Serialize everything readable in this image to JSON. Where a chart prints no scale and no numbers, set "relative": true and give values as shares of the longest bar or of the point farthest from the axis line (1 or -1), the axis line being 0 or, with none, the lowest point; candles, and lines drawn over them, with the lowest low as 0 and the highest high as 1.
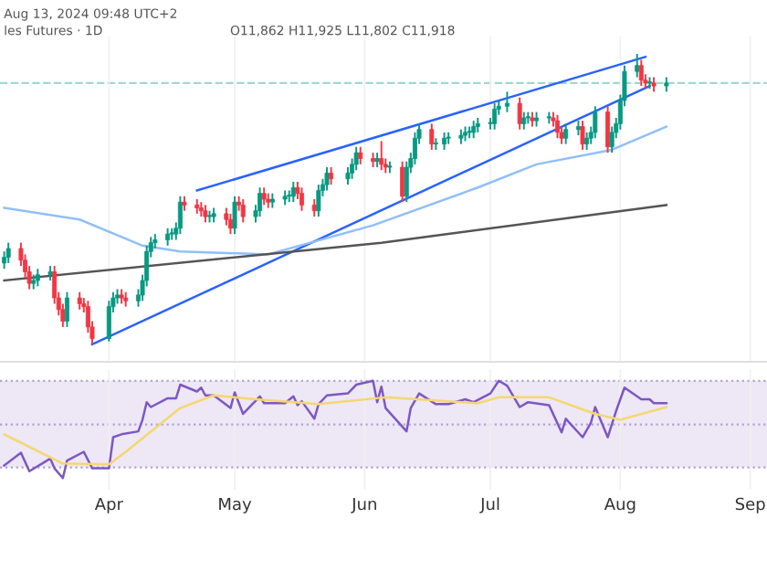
{
  "chart_data": [
    {
      "type": "candlestick",
      "relative": true,
      "tick_labels": false,
      "grid": "x",
      "annotations": [
        "Aug 13, 2024 09:48 UTC+2",
        "les Futures · 1D",
        "O11,862 H11,925 L11,802 C11,918"
      ],
      "xlim": [
        "2024-03-06",
        "2024-09-05"
      ],
      "x": [
        "2024-03-07",
        "2024-03-08",
        "2024-03-11",
        "2024-03-12",
        "2024-03-13",
        "2024-03-14",
        "2024-03-15",
        "2024-03-18",
        "2024-03-19",
        "2024-03-20",
        "2024-03-21",
        "2024-03-22",
        "2024-03-25",
        "2024-03-26",
        "2024-03-27",
        "2024-03-28",
        "2024-04-01",
        "2024-04-02",
        "2024-04-03",
        "2024-04-04",
        "2024-04-05",
        "2024-04-08",
        "2024-04-09",
        "2024-04-10",
        "2024-04-11",
        "2024-04-12",
        "2024-04-15",
        "2024-04-16",
        "2024-04-17",
        "2024-04-18",
        "2024-04-19",
        "2024-04-22",
        "2024-04-23",
        "2024-04-24",
        "2024-04-25",
        "2024-04-26",
        "2024-04-29",
        "2024-04-30",
        "2024-05-01",
        "2024-05-02",
        "2024-05-03",
        "2024-05-06",
        "2024-05-07",
        "2024-05-08",
        "2024-05-09",
        "2024-05-10",
        "2024-05-13",
        "2024-05-14",
        "2024-05-15",
        "2024-05-16",
        "2024-05-17",
        "2024-05-20",
        "2024-05-21",
        "2024-05-22",
        "2024-05-23",
        "2024-05-24",
        "2024-05-28",
        "2024-05-29",
        "2024-05-30",
        "2024-05-31",
        "2024-06-03",
        "2024-06-04",
        "2024-06-05",
        "2024-06-06",
        "2024-06-07",
        "2024-06-10",
        "2024-06-11",
        "2024-06-12",
        "2024-06-13",
        "2024-06-14",
        "2024-06-17",
        "2024-06-18",
        "2024-06-20",
        "2024-06-21",
        "2024-06-24",
        "2024-06-25",
        "2024-06-26",
        "2024-06-27",
        "2024-06-28",
        "2024-07-01",
        "2024-07-02",
        "2024-07-03",
        "2024-07-05",
        "2024-07-08",
        "2024-07-09",
        "2024-07-10",
        "2024-07-11",
        "2024-07-12",
        "2024-07-15",
        "2024-07-16",
        "2024-07-17",
        "2024-07-18",
        "2024-07-19",
        "2024-07-22",
        "2024-07-23",
        "2024-07-24",
        "2024-07-25",
        "2024-07-26",
        "2024-07-29",
        "2024-07-30",
        "2024-07-31",
        "2024-08-01",
        "2024-08-02",
        "2024-08-05",
        "2024-08-06",
        "2024-08-07",
        "2024-08-08",
        "2024-08-09",
        "2024-08-12"
      ],
      "ohlc": [
        [
          0.28,
          0.32,
          0.26,
          0.3
        ],
        [
          0.3,
          0.35,
          0.28,
          0.33
        ],
        [
          0.33,
          0.35,
          0.27,
          0.29
        ],
        [
          0.29,
          0.31,
          0.23,
          0.25
        ],
        [
          0.25,
          0.27,
          0.19,
          0.21
        ],
        [
          0.21,
          0.24,
          0.19,
          0.22
        ],
        [
          0.22,
          0.26,
          0.2,
          0.24
        ],
        [
          0.24,
          0.27,
          0.22,
          0.25
        ],
        [
          0.25,
          0.27,
          0.14,
          0.16
        ],
        [
          0.16,
          0.18,
          0.1,
          0.12
        ],
        [
          0.12,
          0.14,
          0.06,
          0.08
        ],
        [
          0.08,
          0.18,
          0.06,
          0.16
        ],
        [
          0.16,
          0.18,
          0.12,
          0.14
        ],
        [
          0.14,
          0.16,
          0.11,
          0.13
        ],
        [
          0.13,
          0.15,
          0.04,
          0.06
        ],
        [
          0.06,
          0.08,
          0.0,
          0.02
        ],
        [
          0.02,
          0.15,
          0.01,
          0.13
        ],
        [
          0.13,
          0.18,
          0.11,
          0.16
        ],
        [
          0.16,
          0.19,
          0.14,
          0.17
        ],
        [
          0.17,
          0.19,
          0.14,
          0.16
        ],
        [
          0.16,
          0.18,
          0.13,
          0.15
        ],
        [
          0.15,
          0.19,
          0.13,
          0.17
        ],
        [
          0.17,
          0.24,
          0.15,
          0.22
        ],
        [
          0.22,
          0.34,
          0.2,
          0.32
        ],
        [
          0.32,
          0.37,
          0.3,
          0.35
        ],
        [
          0.35,
          0.38,
          0.33,
          0.36
        ],
        [
          0.36,
          0.4,
          0.34,
          0.38
        ],
        [
          0.38,
          0.4,
          0.36,
          0.38
        ],
        [
          0.38,
          0.42,
          0.36,
          0.4
        ],
        [
          0.4,
          0.51,
          0.38,
          0.49
        ],
        [
          0.49,
          0.51,
          0.46,
          0.48
        ],
        [
          0.48,
          0.5,
          0.45,
          0.47
        ],
        [
          0.47,
          0.49,
          0.44,
          0.46
        ],
        [
          0.46,
          0.48,
          0.42,
          0.44
        ],
        [
          0.44,
          0.46,
          0.42,
          0.44
        ],
        [
          0.44,
          0.47,
          0.42,
          0.45
        ],
        [
          0.45,
          0.47,
          0.41,
          0.43
        ],
        [
          0.43,
          0.45,
          0.38,
          0.4
        ],
        [
          0.4,
          0.51,
          0.38,
          0.49
        ],
        [
          0.49,
          0.51,
          0.46,
          0.48
        ],
        [
          0.48,
          0.5,
          0.42,
          0.44
        ],
        [
          0.44,
          0.48,
          0.42,
          0.46
        ],
        [
          0.46,
          0.54,
          0.44,
          0.52
        ],
        [
          0.52,
          0.54,
          0.48,
          0.5
        ],
        [
          0.5,
          0.52,
          0.47,
          0.49
        ],
        [
          0.49,
          0.52,
          0.47,
          0.5
        ],
        [
          0.5,
          0.53,
          0.48,
          0.51
        ],
        [
          0.51,
          0.53,
          0.49,
          0.51
        ],
        [
          0.51,
          0.56,
          0.49,
          0.54
        ],
        [
          0.54,
          0.56,
          0.5,
          0.52
        ],
        [
          0.52,
          0.54,
          0.46,
          0.48
        ],
        [
          0.48,
          0.5,
          0.44,
          0.46
        ],
        [
          0.46,
          0.55,
          0.44,
          0.53
        ],
        [
          0.53,
          0.57,
          0.51,
          0.55
        ],
        [
          0.55,
          0.61,
          0.53,
          0.59
        ],
        [
          0.59,
          0.61,
          0.55,
          0.57
        ],
        [
          0.57,
          0.61,
          0.55,
          0.59
        ],
        [
          0.59,
          0.64,
          0.57,
          0.62
        ],
        [
          0.62,
          0.68,
          0.6,
          0.66
        ],
        [
          0.66,
          0.68,
          0.62,
          0.64
        ],
        [
          0.64,
          0.66,
          0.61,
          0.63
        ],
        [
          0.63,
          0.66,
          0.61,
          0.64
        ],
        [
          0.64,
          0.7,
          0.6,
          0.62
        ],
        [
          0.62,
          0.64,
          0.59,
          0.61
        ],
        [
          0.61,
          0.63,
          0.59,
          0.61
        ],
        [
          0.61,
          0.63,
          0.49,
          0.51
        ],
        [
          0.51,
          0.63,
          0.49,
          0.61
        ],
        [
          0.61,
          0.66,
          0.59,
          0.64
        ],
        [
          0.64,
          0.73,
          0.62,
          0.71
        ],
        [
          0.71,
          0.76,
          0.69,
          0.74
        ],
        [
          0.74,
          0.76,
          0.67,
          0.69
        ],
        [
          0.69,
          0.71,
          0.67,
          0.69
        ],
        [
          0.69,
          0.73,
          0.67,
          0.71
        ],
        [
          0.71,
          0.73,
          0.69,
          0.71
        ],
        [
          0.71,
          0.74,
          0.69,
          0.72
        ],
        [
          0.72,
          0.75,
          0.7,
          0.73
        ],
        [
          0.73,
          0.75,
          0.71,
          0.73
        ],
        [
          0.73,
          0.77,
          0.71,
          0.75
        ],
        [
          0.75,
          0.78,
          0.73,
          0.76
        ],
        [
          0.76,
          0.78,
          0.74,
          0.76
        ],
        [
          0.76,
          0.83,
          0.74,
          0.81
        ],
        [
          0.81,
          0.84,
          0.79,
          0.82
        ],
        [
          0.82,
          0.87,
          0.8,
          0.83
        ],
        [
          0.83,
          0.85,
          0.74,
          0.76
        ],
        [
          0.76,
          0.8,
          0.74,
          0.78
        ],
        [
          0.78,
          0.8,
          0.76,
          0.78
        ],
        [
          0.78,
          0.8,
          0.75,
          0.77
        ],
        [
          0.77,
          0.8,
          0.75,
          0.78
        ],
        [
          0.78,
          0.8,
          0.76,
          0.78
        ],
        [
          0.78,
          0.8,
          0.75,
          0.77
        ],
        [
          0.77,
          0.79,
          0.71,
          0.73
        ],
        [
          0.73,
          0.75,
          0.69,
          0.71
        ],
        [
          0.71,
          0.76,
          0.69,
          0.74
        ],
        [
          0.74,
          0.77,
          0.72,
          0.75
        ],
        [
          0.75,
          0.77,
          0.67,
          0.69
        ],
        [
          0.69,
          0.73,
          0.67,
          0.71
        ],
        [
          0.71,
          0.75,
          0.69,
          0.73
        ],
        [
          0.73,
          0.82,
          0.71,
          0.8
        ],
        [
          0.8,
          0.82,
          0.66,
          0.68
        ],
        [
          0.68,
          0.75,
          0.66,
          0.73
        ],
        [
          0.73,
          0.78,
          0.71,
          0.76
        ],
        [
          0.76,
          0.86,
          0.74,
          0.84
        ],
        [
          0.84,
          0.96,
          0.82,
          0.94
        ],
        [
          0.94,
          1.0,
          0.92,
          0.96
        ],
        [
          0.96,
          0.98,
          0.89,
          0.91
        ],
        [
          0.91,
          0.93,
          0.88,
          0.9
        ],
        [
          0.9,
          0.92,
          0.88,
          0.9
        ],
        [
          0.9,
          0.92,
          0.87,
          0.89
        ],
        [
          0.89,
          0.92,
          0.87,
          0.9
        ]
      ],
      "colors": [
        "#089981",
        "#089981",
        "#f23645",
        "#f23645",
        "#f23645",
        "#089981",
        "#089981",
        "#089981",
        "#f23645",
        "#f23645",
        "#f23645",
        "#089981",
        "#f23645",
        "#f23645",
        "#f23645",
        "#f23645",
        "#089981",
        "#089981",
        "#089981",
        "#f23645",
        "#f23645",
        "#089981",
        "#089981",
        "#089981",
        "#089981",
        "#089981",
        "#089981",
        "#089981",
        "#089981",
        "#089981",
        "#f23645",
        "#f23645",
        "#f23645",
        "#f23645",
        "#089981",
        "#089981",
        "#f23645",
        "#f23645",
        "#089981",
        "#f23645",
        "#f23645",
        "#089981",
        "#089981",
        "#f23645",
        "#f23645",
        "#089981",
        "#089981",
        "#089981",
        "#089981",
        "#f23645",
        "#f23645",
        "#f23645",
        "#089981",
        "#089981",
        "#089981",
        "#f23645",
        "#089981",
        "#089981",
        "#089981",
        "#f23645",
        "#f23645",
        "#089981",
        "#f23645",
        "#f23645",
        "#089981",
        "#f23645",
        "#089981",
        "#089981",
        "#089981",
        "#089981",
        "#f23645",
        "#089981",
        "#089981",
        "#089981",
        "#089981",
        "#089981",
        "#089981",
        "#089981",
        "#089981",
        "#089981",
        "#089981",
        "#089981",
        "#089981",
        "#f23645",
        "#089981",
        "#089981",
        "#f23645",
        "#089981",
        "#089981",
        "#f23645",
        "#f23645",
        "#f23645",
        "#089981",
        "#089981",
        "#f23645",
        "#089981",
        "#089981",
        "#089981",
        "#f23645",
        "#089981",
        "#089981",
        "#089981",
        "#089981",
        "#089981",
        "#f23645",
        "#f23645",
        "#089981",
        "#f23645",
        "#089981"
      ],
      "series": [
        {
          "type": "line",
          "color": "#2962ff",
          "x": [
            "2024-04-22",
            "2024-08-07"
          ],
          "values": [
            0.53,
            0.99
          ]
        },
        {
          "type": "line",
          "color": "#2962ff",
          "x": [
            "2024-03-28",
            "2024-08-08"
          ],
          "values": [
            0.0,
            0.89
          ]
        },
        {
          "type": "line",
          "color": "#90bff9",
          "x": [
            "2024-03-07",
            "2024-03-25",
            "2024-04-09",
            "2024-04-18",
            "2024-05-09",
            "2024-06-03",
            "2024-06-28",
            "2024-07-12",
            "2024-07-30",
            "2024-08-12"
          ],
          "values": [
            0.47,
            0.43,
            0.34,
            0.32,
            0.31,
            0.41,
            0.54,
            0.62,
            0.67,
            0.75
          ]
        },
        {
          "type": "line",
          "color": "#555555",
          "x": [
            "2024-03-07",
            "2024-06-05",
            "2024-08-12"
          ],
          "values": [
            0.22,
            0.35,
            0.48
          ]
        }
      ],
      "ref_lines": [
        {
          "axis": "y",
          "value": 0.9,
          "color": "#9fd8d2",
          "line_style": "dashed"
        }
      ]
    },
    {
      "type": "line",
      "relative": true,
      "tick_labels": "x",
      "grid": "x",
      "xlim": [
        "2024-03-06",
        "2024-09-05"
      ],
      "xticks": [
        {
          "value": "2024-04-01",
          "label": "Apr"
        },
        {
          "value": "2024-05-01",
          "label": "May"
        },
        {
          "value": "2024-06-01",
          "label": "Jun"
        },
        {
          "value": "2024-07-01",
          "label": "Jul"
        },
        {
          "value": "2024-08-01",
          "label": "Aug"
        },
        {
          "value": "2024-09-01",
          "label": "Sep"
        }
      ],
      "series": [
        {
          "color": "#7e57c2",
          "x": [
            "2024-03-07",
            "2024-03-11",
            "2024-03-13",
            "2024-03-18",
            "2024-03-19",
            "2024-03-21",
            "2024-03-22",
            "2024-03-26",
            "2024-03-28",
            "2024-04-01",
            "2024-04-02",
            "2024-04-04",
            "2024-04-08",
            "2024-04-09",
            "2024-04-10",
            "2024-04-11",
            "2024-04-15",
            "2024-04-17",
            "2024-04-18",
            "2024-04-22",
            "2024-04-23",
            "2024-04-24",
            "2024-04-26",
            "2024-04-30",
            "2024-05-01",
            "2024-05-03",
            "2024-05-07",
            "2024-05-08",
            "2024-05-13",
            "2024-05-15",
            "2024-05-16",
            "2024-05-17",
            "2024-05-20",
            "2024-05-21",
            "2024-05-23",
            "2024-05-28",
            "2024-05-30",
            "2024-06-03",
            "2024-06-04",
            "2024-06-05",
            "2024-06-06",
            "2024-06-11",
            "2024-06-12",
            "2024-06-14",
            "2024-06-18",
            "2024-06-21",
            "2024-06-25",
            "2024-06-27",
            "2024-07-01",
            "2024-07-03",
            "2024-07-05",
            "2024-07-08",
            "2024-07-10",
            "2024-07-15",
            "2024-07-18",
            "2024-07-19",
            "2024-07-23",
            "2024-07-25",
            "2024-07-26",
            "2024-07-29",
            "2024-07-31",
            "2024-08-02",
            "2024-08-06",
            "2024-08-08",
            "2024-08-09",
            "2024-08-12"
          ],
          "values": [
            0.13,
            0.26,
            0.07,
            0.2,
            0.1,
            0.0,
            0.18,
            0.27,
            0.1,
            0.1,
            0.42,
            0.45,
            0.48,
            0.6,
            0.78,
            0.73,
            0.82,
            0.82,
            0.96,
            0.89,
            0.93,
            0.85,
            0.85,
            0.72,
            0.88,
            0.66,
            0.84,
            0.77,
            0.77,
            0.84,
            0.75,
            0.79,
            0.61,
            0.76,
            0.85,
            0.87,
            0.96,
            1.0,
            0.78,
            0.94,
            0.72,
            0.48,
            0.72,
            0.87,
            0.76,
            0.76,
            0.81,
            0.78,
            0.87,
            1.0,
            0.95,
            0.73,
            0.78,
            0.75,
            0.47,
            0.61,
            0.42,
            0.57,
            0.73,
            0.42,
            0.69,
            0.93,
            0.81,
            0.81,
            0.77,
            0.77
          ]
        },
        {
          "color": "#f5d76e",
          "x": [
            "2024-03-07",
            "2024-03-21",
            "2024-04-01",
            "2024-04-05",
            "2024-04-18",
            "2024-04-26",
            "2024-05-06",
            "2024-05-21",
            "2024-06-06",
            "2024-06-28",
            "2024-07-03",
            "2024-07-15",
            "2024-07-26",
            "2024-08-01",
            "2024-08-12"
          ],
          "values": [
            0.45,
            0.15,
            0.14,
            0.27,
            0.72,
            0.85,
            0.81,
            0.76,
            0.83,
            0.77,
            0.83,
            0.83,
            0.66,
            0.6,
            0.73
          ]
        }
      ],
      "bands": [
        {
          "axis": "y",
          "from": 0.11,
          "to": 1.0,
          "color": "#ede7f6"
        }
      ],
      "ref_lines": [
        {
          "axis": "y",
          "value": 1.0,
          "color": "#b2a4cf",
          "line_style": "dotted"
        },
        {
          "axis": "y",
          "value": 0.55,
          "color": "#b2a4cf",
          "line_style": "dotted"
        },
        {
          "axis": "y",
          "value": 0.11,
          "color": "#b2a4cf",
          "line_style": "dotted"
        }
      ]
    }
  ]
}
